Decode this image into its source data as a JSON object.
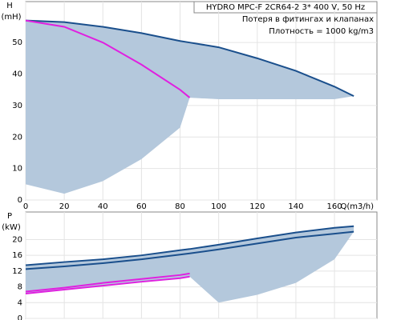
{
  "chart_data": [
    {
      "type": "line",
      "ylabel": "H",
      "yunit": "(mH)",
      "xlabel": "Q(m3/h)",
      "info": [
        "HYDRO MPC-F 2CR64-2    3* 400 V, 50 Hz",
        "Потеря в фитингах и клапанах",
        "Плотность = 1000 kg/m3"
      ],
      "x": [
        0,
        20,
        40,
        60,
        80,
        85,
        100,
        120,
        140,
        160,
        170
      ],
      "xlim": [
        0,
        182
      ],
      "xticks": [
        0,
        20,
        40,
        60,
        80,
        100,
        120,
        140,
        160
      ],
      "ylim": [
        0,
        63
      ],
      "yticks": [
        0,
        10,
        20,
        30,
        40,
        50
      ],
      "grid": true,
      "band": {
        "color": "#b4c8dc",
        "low": [
          5,
          2,
          6,
          13,
          23,
          32.5,
          32,
          32,
          32,
          32,
          33
        ]
      },
      "series": [
        {
          "color": "#1a4f8c",
          "values": [
            57,
            56.5,
            55,
            53,
            50.5,
            50,
            48.5,
            45,
            41,
            36,
            33
          ]
        },
        {
          "color": "#e020e0",
          "values": [
            57,
            55,
            50,
            43,
            35,
            32.5,
            null,
            null,
            null,
            null,
            null
          ]
        }
      ]
    },
    {
      "type": "line",
      "ylabel": "P",
      "yunit": "(kW)",
      "x": [
        0,
        20,
        40,
        60,
        80,
        85,
        100,
        120,
        140,
        160,
        170
      ],
      "xlim": [
        0,
        182
      ],
      "ylim": [
        0,
        27
      ],
      "yticks": [
        0,
        4,
        8,
        12,
        16,
        20
      ],
      "grid": true,
      "band": {
        "color": "#b4c8dc",
        "low": [
          6.3,
          7.3,
          8.3,
          9.3,
          10.2,
          10.6,
          4,
          6,
          9,
          15,
          22
        ]
      },
      "series": [
        {
          "color": "#1a4f8c",
          "values": [
            13.5,
            14.3,
            15,
            16,
            17.3,
            17.6,
            18.7,
            20.3,
            21.8,
            23,
            23.4
          ]
        },
        {
          "color": "#1a4f8c",
          "values": [
            12.5,
            13.2,
            14,
            15,
            16.2,
            16.5,
            17.5,
            19,
            20.5,
            21.5,
            22
          ]
        },
        {
          "color": "#e020e0",
          "values": [
            6.8,
            7.8,
            9,
            10,
            11,
            11.4,
            null,
            null,
            null,
            null,
            null
          ]
        },
        {
          "color": "#e020e0",
          "values": [
            6.3,
            7.3,
            8.3,
            9.3,
            10.2,
            10.6,
            null,
            null,
            null,
            null,
            null
          ]
        }
      ]
    }
  ]
}
